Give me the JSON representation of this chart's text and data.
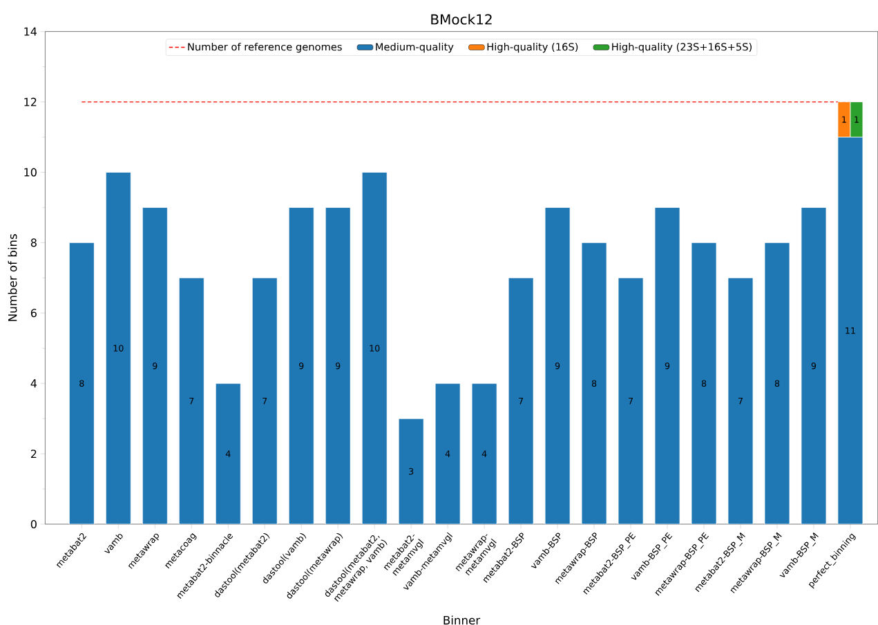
{
  "chart_data": {
    "type": "bar",
    "title": "BMock12",
    "xlabel": "Binner",
    "ylabel": "Number of bins",
    "categories": [
      "metabat2",
      "vamb",
      "metawrap",
      "metacoag",
      "metabat2-binnacle",
      "dastool(metabat2)",
      "dastool(vamb)",
      "dastool(metawrap)",
      "dastool(metabat2, metawrap, vamb)",
      "metabat2-metamvgl",
      "vamb-metamvgl",
      "metawrap-metamvgl",
      "metabat2-BSP",
      "vamb-BSP",
      "metawrap-BSP",
      "metabat2-BSP_PE",
      "vamb-BSP_PE",
      "metawrap-BSP_PE",
      "metabat2-BSP_M",
      "metawrap-BSP_M",
      "vamb-BSP_M",
      "perfect_binning"
    ],
    "series": [
      {
        "name": "Medium-quality",
        "color": "#1f77b4",
        "values": [
          8,
          10,
          9,
          7,
          4,
          7,
          9,
          9,
          10,
          3,
          4,
          4,
          7,
          9,
          8,
          7,
          9,
          8,
          7,
          8,
          9,
          11
        ]
      },
      {
        "name": "High-quality (16S)",
        "color": "#ff7f0e",
        "values": [
          null,
          null,
          null,
          null,
          null,
          null,
          null,
          null,
          null,
          null,
          null,
          null,
          null,
          null,
          null,
          null,
          null,
          null,
          null,
          null,
          null,
          1
        ],
        "base": [
          null,
          null,
          null,
          null,
          null,
          null,
          null,
          null,
          null,
          null,
          null,
          null,
          null,
          null,
          null,
          null,
          null,
          null,
          null,
          null,
          null,
          11
        ]
      },
      {
        "name": "High-quality (23S+16S+5S)",
        "color": "#2ca02c",
        "values": [
          null,
          null,
          null,
          null,
          null,
          null,
          null,
          null,
          null,
          null,
          null,
          null,
          null,
          null,
          null,
          null,
          null,
          null,
          null,
          null,
          null,
          1
        ],
        "base": [
          null,
          null,
          null,
          null,
          null,
          null,
          null,
          null,
          null,
          null,
          null,
          null,
          null,
          null,
          null,
          null,
          null,
          null,
          null,
          null,
          null,
          11
        ]
      }
    ],
    "ylim": [
      0,
      14
    ],
    "yticks": [
      0,
      2,
      4,
      6,
      8,
      10,
      12,
      14
    ],
    "ref_lines": [
      {
        "axis": "y",
        "value": 12,
        "label": "Number of reference genomes",
        "color": "#ff0000",
        "line_style": "dashed"
      }
    ],
    "data_labels": true,
    "legend": "top",
    "grid": false
  }
}
